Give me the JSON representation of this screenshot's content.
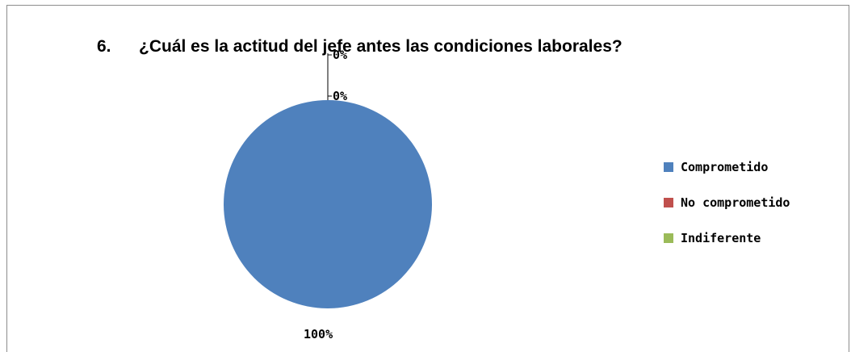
{
  "chart_data": {
    "type": "pie",
    "title_number": "6.",
    "title": "¿Cuál es la actitud del jefe antes las condiciones laborales?",
    "slices": [
      {
        "label": "Comprometido",
        "value": 100,
        "display": "100%",
        "color": "#4F81BD"
      },
      {
        "label": "No comprometido",
        "value": 0,
        "display": "0%",
        "color": "#C0504D"
      },
      {
        "label": "Indiferente",
        "value": 0,
        "display": "0%",
        "color": "#9BBB59"
      }
    ],
    "legend_position": "right"
  }
}
